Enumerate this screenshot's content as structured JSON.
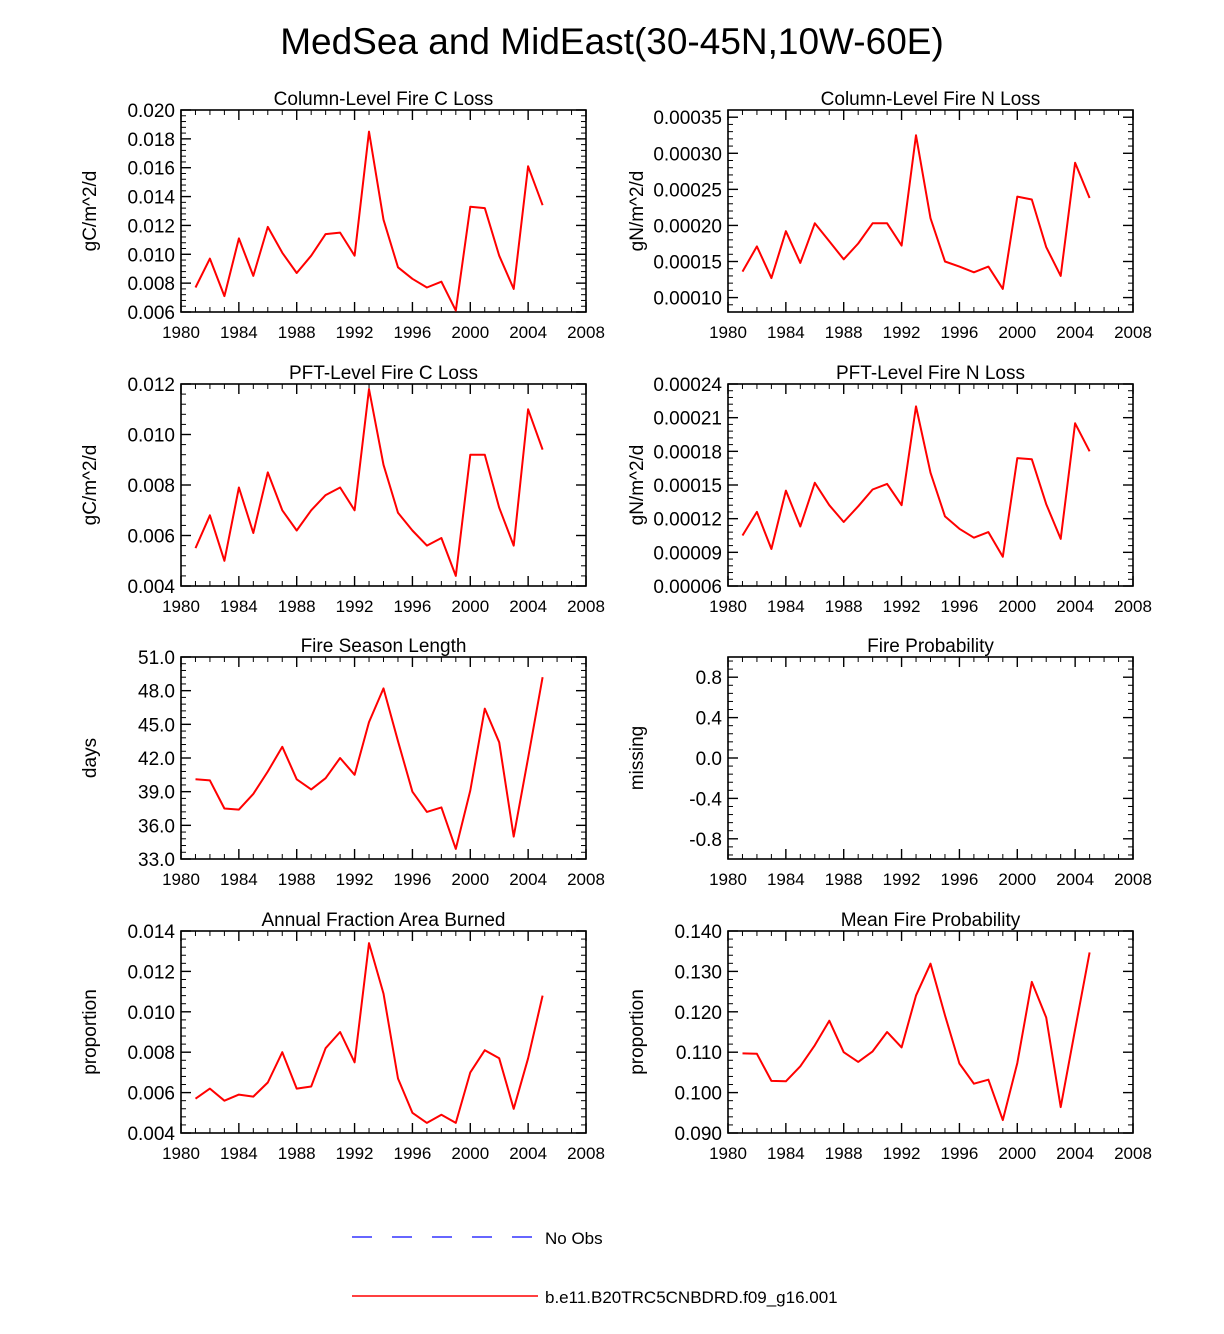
{
  "figure_title": "MedSea and MidEast(30-45N,10W-60E)",
  "legend": {
    "items": [
      {
        "label": "No Obs",
        "color": "#3333ff",
        "style": "dashed"
      },
      {
        "label": "b.e11.B20TRC5CNBDRD.f09_g16.001",
        "color": "#ff0000",
        "style": "solid"
      }
    ]
  },
  "chart_data": [
    {
      "type": "line",
      "title": "Column-Level Fire C Loss",
      "ylabel": "gC/m^2/d",
      "xlim": [
        1980,
        2008
      ],
      "ylim": [
        0.006,
        0.02
      ],
      "xticks": [
        1980,
        1984,
        1988,
        1992,
        1996,
        2000,
        2004,
        2008
      ],
      "xtick_labels": [
        "1980",
        "1984",
        "1988",
        "1992",
        "1996",
        "2000",
        "2004",
        "2008"
      ],
      "yticks": [
        0.006,
        0.008,
        0.01,
        0.012,
        0.014,
        0.016,
        0.018,
        0.02
      ],
      "ytick_labels": [
        "0.006",
        "0.008",
        "0.010",
        "0.012",
        "0.014",
        "0.016",
        "0.018",
        "0.020"
      ],
      "series": [
        {
          "color": "#ff0000",
          "x": [
            1981,
            1982,
            1983,
            1984,
            1985,
            1986,
            1987,
            1988,
            1989,
            1990,
            1991,
            1992,
            1993,
            1994,
            1995,
            1996,
            1997,
            1998,
            1999,
            2000,
            2001,
            2002,
            2003,
            2004,
            2005
          ],
          "y": [
            0.0077,
            0.0097,
            0.0071,
            0.0111,
            0.0085,
            0.0119,
            0.0101,
            0.0087,
            0.0099,
            0.0114,
            0.0115,
            0.0099,
            0.0185,
            0.0124,
            0.0091,
            0.0083,
            0.0077,
            0.0081,
            0.0061,
            0.0133,
            0.0132,
            0.0099,
            0.0076,
            0.0161,
            0.0134
          ]
        }
      ]
    },
    {
      "type": "line",
      "title": "Column-Level Fire N Loss",
      "ylabel": "gN/m^2/d",
      "xlim": [
        1980,
        2008
      ],
      "ylim": [
        8e-05,
        0.00036
      ],
      "xticks": [
        1980,
        1984,
        1988,
        1992,
        1996,
        2000,
        2004,
        2008
      ],
      "xtick_labels": [
        "1980",
        "1984",
        "1988",
        "1992",
        "1996",
        "2000",
        "2004",
        "2008"
      ],
      "yticks": [
        0.0001,
        0.00015,
        0.0002,
        0.00025,
        0.0003,
        0.00035
      ],
      "ytick_labels": [
        "0.00010",
        "0.00015",
        "0.00020",
        "0.00025",
        "0.00030",
        "0.00035"
      ],
      "series": [
        {
          "color": "#ff0000",
          "x": [
            1981,
            1982,
            1983,
            1984,
            1985,
            1986,
            1987,
            1988,
            1989,
            1990,
            1991,
            1992,
            1993,
            1994,
            1995,
            1996,
            1997,
            1998,
            1999,
            2000,
            2001,
            2002,
            2003,
            2004,
            2005
          ],
          "y": [
            0.000136,
            0.000171,
            0.000127,
            0.000192,
            0.000148,
            0.000203,
            0.000178,
            0.000153,
            0.000175,
            0.000203,
            0.000203,
            0.000172,
            0.000325,
            0.00021,
            0.00015,
            0.000143,
            0.000135,
            0.000143,
            0.000112,
            0.00024,
            0.000236,
            0.00017,
            0.00013,
            0.000287,
            0.000238
          ]
        }
      ]
    },
    {
      "type": "line",
      "title": "PFT-Level Fire C Loss",
      "ylabel": "gC/m^2/d",
      "xlim": [
        1980,
        2008
      ],
      "ylim": [
        0.004,
        0.012
      ],
      "xticks": [
        1980,
        1984,
        1988,
        1992,
        1996,
        2000,
        2004,
        2008
      ],
      "xtick_labels": [
        "1980",
        "1984",
        "1988",
        "1992",
        "1996",
        "2000",
        "2004",
        "2008"
      ],
      "yticks": [
        0.004,
        0.006,
        0.008,
        0.01,
        0.012
      ],
      "ytick_labels": [
        "0.004",
        "0.006",
        "0.008",
        "0.010",
        "0.012"
      ],
      "series": [
        {
          "color": "#ff0000",
          "x": [
            1981,
            1982,
            1983,
            1984,
            1985,
            1986,
            1987,
            1988,
            1989,
            1990,
            1991,
            1992,
            1993,
            1994,
            1995,
            1996,
            1997,
            1998,
            1999,
            2000,
            2001,
            2002,
            2003,
            2004,
            2005
          ],
          "y": [
            0.0055,
            0.0068,
            0.005,
            0.0079,
            0.0061,
            0.0085,
            0.007,
            0.0062,
            0.007,
            0.0076,
            0.0079,
            0.007,
            0.0118,
            0.0088,
            0.0069,
            0.0062,
            0.0056,
            0.0059,
            0.0044,
            0.0092,
            0.0092,
            0.0071,
            0.0056,
            0.011,
            0.0094
          ]
        }
      ]
    },
    {
      "type": "line",
      "title": "PFT-Level Fire N Loss",
      "ylabel": "gN/m^2/d",
      "xlim": [
        1980,
        2008
      ],
      "ylim": [
        6e-05,
        0.00024
      ],
      "xticks": [
        1980,
        1984,
        1988,
        1992,
        1996,
        2000,
        2004,
        2008
      ],
      "xtick_labels": [
        "1980",
        "1984",
        "1988",
        "1992",
        "1996",
        "2000",
        "2004",
        "2008"
      ],
      "yticks": [
        6e-05,
        9e-05,
        0.00012,
        0.00015,
        0.00018,
        0.00021,
        0.00024
      ],
      "ytick_labels": [
        "0.00006",
        "0.00009",
        "0.00012",
        "0.00015",
        "0.00018",
        "0.00021",
        "0.00024"
      ],
      "series": [
        {
          "color": "#ff0000",
          "x": [
            1981,
            1982,
            1983,
            1984,
            1985,
            1986,
            1987,
            1988,
            1989,
            1990,
            1991,
            1992,
            1993,
            1994,
            1995,
            1996,
            1997,
            1998,
            1999,
            2000,
            2001,
            2002,
            2003,
            2004,
            2005
          ],
          "y": [
            0.000105,
            0.000126,
            9.3e-05,
            0.000145,
            0.000113,
            0.000152,
            0.000132,
            0.000117,
            0.000131,
            0.000146,
            0.000151,
            0.000132,
            0.00022,
            0.000161,
            0.000122,
            0.000111,
            0.000103,
            0.000108,
            8.6e-05,
            0.000174,
            0.000173,
            0.000133,
            0.000102,
            0.000205,
            0.00018
          ]
        }
      ]
    },
    {
      "type": "line",
      "title": "Fire Season Length",
      "ylabel": "days",
      "xlim": [
        1980,
        2008
      ],
      "ylim": [
        33.0,
        51.0
      ],
      "xticks": [
        1980,
        1984,
        1988,
        1992,
        1996,
        2000,
        2004,
        2008
      ],
      "xtick_labels": [
        "1980",
        "1984",
        "1988",
        "1992",
        "1996",
        "2000",
        "2004",
        "2008"
      ],
      "yticks": [
        33.0,
        36.0,
        39.0,
        42.0,
        45.0,
        48.0,
        51.0
      ],
      "ytick_labels": [
        "33.0",
        "36.0",
        "39.0",
        "42.0",
        "45.0",
        "48.0",
        "51.0"
      ],
      "series": [
        {
          "color": "#ff0000",
          "x": [
            1981,
            1982,
            1983,
            1984,
            1985,
            1986,
            1987,
            1988,
            1989,
            1990,
            1991,
            1992,
            1993,
            1994,
            1995,
            1996,
            1997,
            1998,
            1999,
            2000,
            2001,
            2002,
            2003,
            2004,
            2005
          ],
          "y": [
            40.1,
            40.0,
            37.5,
            37.4,
            38.8,
            40.8,
            43.0,
            40.1,
            39.2,
            40.2,
            42.0,
            40.5,
            45.2,
            48.2,
            43.5,
            39.0,
            37.2,
            37.6,
            33.9,
            39.1,
            46.4,
            43.4,
            35.0,
            42.0,
            49.2
          ]
        }
      ]
    },
    {
      "type": "line",
      "title": "Fire Probability",
      "ylabel": "missing",
      "xlim": [
        1980,
        2008
      ],
      "ylim": [
        -1.0,
        1.0
      ],
      "xticks": [
        1980,
        1984,
        1988,
        1992,
        1996,
        2000,
        2004,
        2008
      ],
      "xtick_labels": [
        "1980",
        "1984",
        "1988",
        "1992",
        "1996",
        "2000",
        "2004",
        "2008"
      ],
      "yticks": [
        -0.8,
        -0.4,
        0.0,
        0.4,
        0.8
      ],
      "ytick_labels": [
        "-0.8",
        "-0.4",
        "0.0",
        "0.4",
        "0.8"
      ],
      "series": []
    },
    {
      "type": "line",
      "title": "Annual Fraction Area Burned",
      "ylabel": "proportion",
      "xlim": [
        1980,
        2008
      ],
      "ylim": [
        0.004,
        0.014
      ],
      "xticks": [
        1980,
        1984,
        1988,
        1992,
        1996,
        2000,
        2004,
        2008
      ],
      "xtick_labels": [
        "1980",
        "1984",
        "1988",
        "1992",
        "1996",
        "2000",
        "2004",
        "2008"
      ],
      "yticks": [
        0.004,
        0.006,
        0.008,
        0.01,
        0.012,
        0.014
      ],
      "ytick_labels": [
        "0.004",
        "0.006",
        "0.008",
        "0.010",
        "0.012",
        "0.014"
      ],
      "series": [
        {
          "color": "#ff0000",
          "x": [
            1981,
            1982,
            1983,
            1984,
            1985,
            1986,
            1987,
            1988,
            1989,
            1990,
            1991,
            1992,
            1993,
            1994,
            1995,
            1996,
            1997,
            1998,
            1999,
            2000,
            2001,
            2002,
            2003,
            2004,
            2005
          ],
          "y": [
            0.0057,
            0.0062,
            0.0056,
            0.0059,
            0.0058,
            0.0065,
            0.008,
            0.0062,
            0.0063,
            0.0082,
            0.009,
            0.0075,
            0.0134,
            0.0109,
            0.0067,
            0.005,
            0.0045,
            0.0049,
            0.0045,
            0.007,
            0.0081,
            0.0077,
            0.0052,
            0.0077,
            0.0108
          ]
        }
      ]
    },
    {
      "type": "line",
      "title": "Mean Fire Probability",
      "ylabel": "proportion",
      "xlim": [
        1980,
        2008
      ],
      "ylim": [
        0.09,
        0.14
      ],
      "xticks": [
        1980,
        1984,
        1988,
        1992,
        1996,
        2000,
        2004,
        2008
      ],
      "xtick_labels": [
        "1980",
        "1984",
        "1988",
        "1992",
        "1996",
        "2000",
        "2004",
        "2008"
      ],
      "yticks": [
        0.09,
        0.1,
        0.11,
        0.12,
        0.13,
        0.14
      ],
      "ytick_labels": [
        "0.090",
        "0.100",
        "0.110",
        "0.120",
        "0.130",
        "0.140"
      ],
      "series": [
        {
          "color": "#ff0000",
          "x": [
            1981,
            1982,
            1983,
            1984,
            1985,
            1986,
            1987,
            1988,
            1989,
            1990,
            1991,
            1992,
            1993,
            1994,
            1995,
            1996,
            1997,
            1998,
            1999,
            2000,
            2001,
            2002,
            2003,
            2004,
            2005
          ],
          "y": [
            0.1097,
            0.1096,
            0.1029,
            0.1028,
            0.1065,
            0.1117,
            0.1178,
            0.11,
            0.1076,
            0.1102,
            0.115,
            0.1112,
            0.124,
            0.1319,
            0.1191,
            0.1072,
            0.1022,
            0.1032,
            0.0932,
            0.1073,
            0.1274,
            0.1186,
            0.0964,
            0.1156,
            0.1347
          ]
        }
      ]
    }
  ]
}
